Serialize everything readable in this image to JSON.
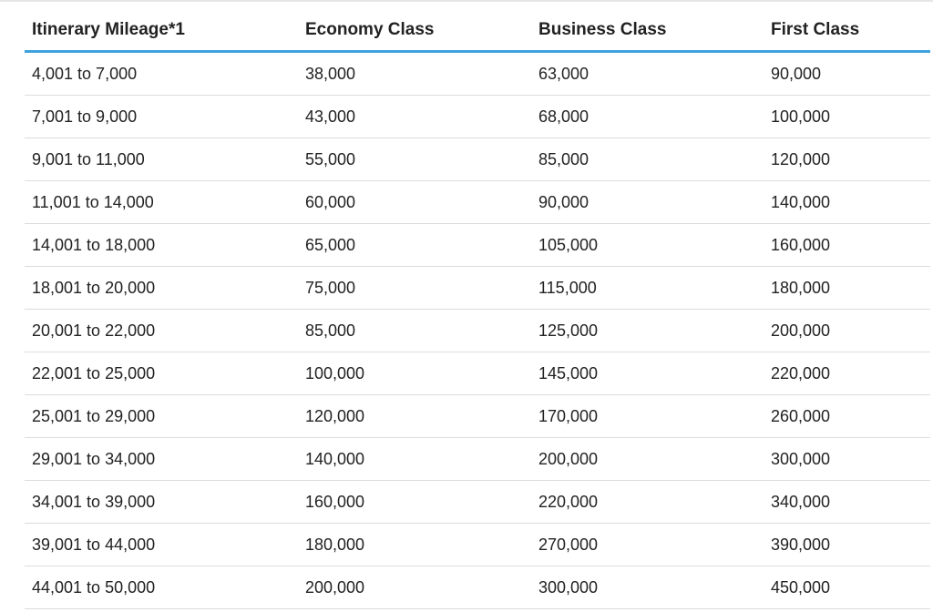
{
  "table": {
    "headers": [
      "Itinerary Mileage*1",
      "Economy Class",
      "Business Class",
      "First Class"
    ],
    "rows": [
      [
        "4,001 to 7,000",
        "38,000",
        "63,000",
        "90,000"
      ],
      [
        "7,001 to 9,000",
        "43,000",
        "68,000",
        "100,000"
      ],
      [
        "9,001 to 11,000",
        "55,000",
        "85,000",
        "120,000"
      ],
      [
        "11,001 to 14,000",
        "60,000",
        "90,000",
        "140,000"
      ],
      [
        "14,001 to 18,000",
        "65,000",
        "105,000",
        "160,000"
      ],
      [
        "18,001 to 20,000",
        "75,000",
        "115,000",
        "180,000"
      ],
      [
        "20,001 to 22,000",
        "85,000",
        "125,000",
        "200,000"
      ],
      [
        "22,001 to 25,000",
        "100,000",
        "145,000",
        "220,000"
      ],
      [
        "25,001 to 29,000",
        "120,000",
        "170,000",
        "260,000"
      ],
      [
        "29,001 to 34,000",
        "140,000",
        "200,000",
        "300,000"
      ],
      [
        "34,001 to 39,000",
        "160,000",
        "220,000",
        "340,000"
      ],
      [
        "39,001 to 44,000",
        "180,000",
        "270,000",
        "390,000"
      ],
      [
        "44,001 to 50,000",
        "200,000",
        "300,000",
        "450,000"
      ]
    ]
  },
  "colors": {
    "header_rule": "#3fa2de",
    "row_divider": "#dcdcdc",
    "text": "#222222"
  }
}
